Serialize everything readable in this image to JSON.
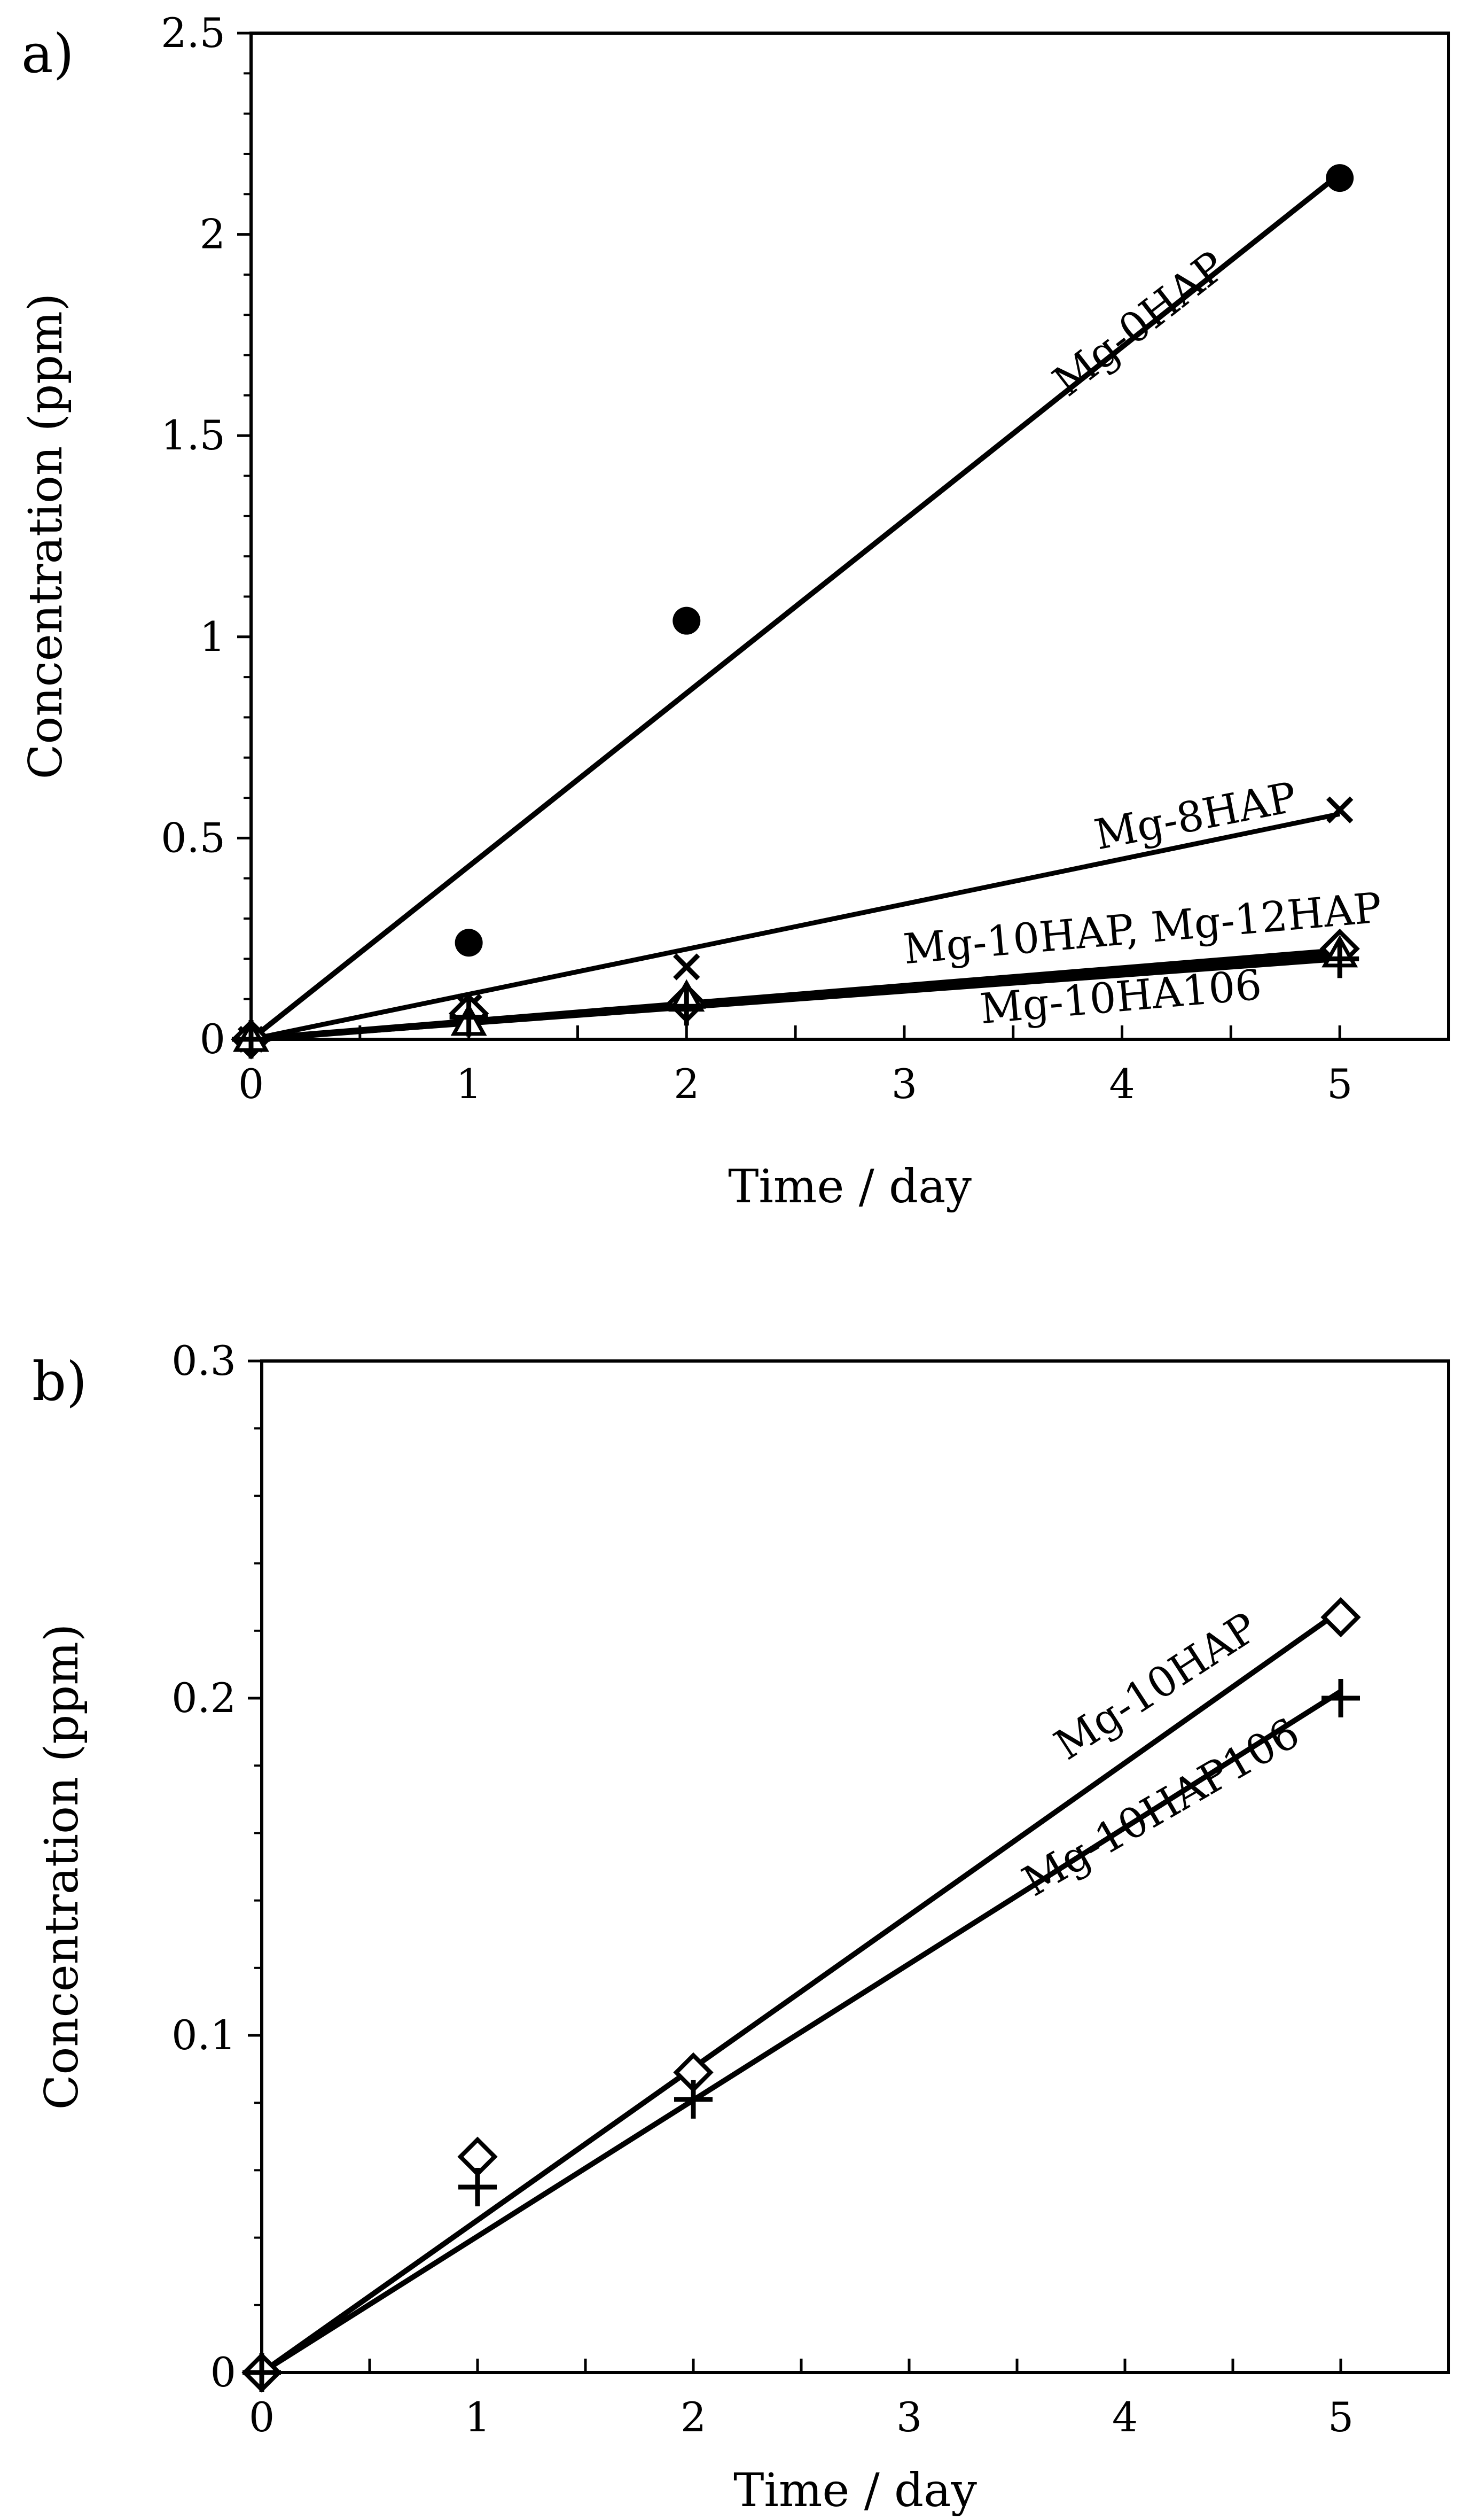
{
  "figure": {
    "colors": {
      "ink": "#000000",
      "background": "#ffffff"
    }
  },
  "chart_data": [
    {
      "panel_label": "a)",
      "type": "scatter",
      "xlabel": "Time / day",
      "ylabel": "Concentration (ppm)",
      "xlim": [
        0,
        5.5
      ],
      "ylim": [
        0,
        2.5
      ],
      "xticks": [
        0,
        1,
        2,
        3,
        4,
        5
      ],
      "yticks": [
        0,
        0.5,
        1,
        1.5,
        2,
        2.5
      ],
      "ytick_labels": [
        "0",
        "0.5",
        "1",
        "1.5",
        "2",
        "2.5"
      ],
      "grid": false,
      "series": [
        {
          "name": "Mg-0HAP",
          "marker": "filled-circle",
          "x": [
            0,
            1,
            2,
            5
          ],
          "values": [
            0,
            0.24,
            1.04,
            2.14
          ],
          "trend": {
            "x": [
              0,
              5
            ],
            "y": [
              0,
              2.15
            ]
          }
        },
        {
          "name": "Mg-8HAP",
          "marker": "x",
          "x": [
            0,
            1,
            2,
            5
          ],
          "values": [
            0,
            0.08,
            0.18,
            0.57
          ],
          "trend": {
            "x": [
              0,
              5
            ],
            "y": [
              0,
              0.56
            ]
          }
        },
        {
          "name": "Mg-10HAP",
          "marker": "open-diamond",
          "x": [
            0,
            1,
            2,
            5
          ],
          "values": [
            0,
            0.064,
            0.09,
            0.225
          ],
          "trend": {
            "x": [
              0,
              5
            ],
            "y": [
              0,
              0.22
            ]
          }
        },
        {
          "name": "Mg-12HAP",
          "marker": "open-triangle",
          "x": [
            0,
            1,
            2,
            5
          ],
          "values": [
            0,
            0.04,
            0.1,
            0.21
          ],
          "trend": {
            "x": [
              0,
              5
            ],
            "y": [
              0,
              0.21
            ]
          }
        },
        {
          "name": "Mg-10HA106",
          "marker": "plus",
          "x": [
            0,
            1,
            2,
            5
          ],
          "values": [
            0,
            0.055,
            0.082,
            0.2
          ],
          "trend": {
            "x": [
              0,
              5
            ],
            "y": [
              0,
              0.2
            ]
          }
        }
      ],
      "annotations": [
        {
          "text": "Mg-0HAP",
          "x": 4.12,
          "y": 1.75,
          "angle": -38
        },
        {
          "text": "Mg-8HAP",
          "x": 4.35,
          "y": 0.52,
          "angle": -11
        },
        {
          "text": "Mg-10HAP, Mg-12HAP",
          "x": 4.1,
          "y": 0.24,
          "angle": -5
        },
        {
          "text": "Mg-10HA106",
          "x": 4.0,
          "y": 0.07,
          "angle": -5
        }
      ]
    },
    {
      "panel_label": "b)",
      "type": "scatter",
      "xlabel": "Time / day",
      "ylabel": "Concentration (ppm)",
      "xlim": [
        0,
        5.5
      ],
      "ylim": [
        0,
        0.3
      ],
      "xticks": [
        0,
        1,
        2,
        3,
        4,
        5
      ],
      "yticks": [
        0,
        0.1,
        0.2,
        0.3
      ],
      "ytick_labels": [
        "0",
        "0.1",
        "0.2",
        "0.3"
      ],
      "grid": false,
      "series": [
        {
          "name": "Mg-10HAP",
          "marker": "open-diamond",
          "x": [
            0,
            1,
            2,
            5
          ],
          "values": [
            0,
            0.064,
            0.089,
            0.224
          ],
          "trend": {
            "x": [
              0,
              5
            ],
            "y": [
              0,
              0.226
            ]
          }
        },
        {
          "name": "Mg-10HAP106",
          "marker": "plus",
          "x": [
            0,
            1,
            2,
            5
          ],
          "values": [
            0,
            0.055,
            0.081,
            0.2
          ],
          "trend": {
            "x": [
              0,
              5
            ],
            "y": [
              0,
              0.202
            ]
          }
        }
      ],
      "annotations": [
        {
          "text": "Mg-10HAP",
          "x": 4.18,
          "y": 0.2,
          "angle": -33
        },
        {
          "text": "Mg-10HAP106",
          "x": 4.2,
          "y": 0.164,
          "angle": -30
        }
      ]
    }
  ]
}
